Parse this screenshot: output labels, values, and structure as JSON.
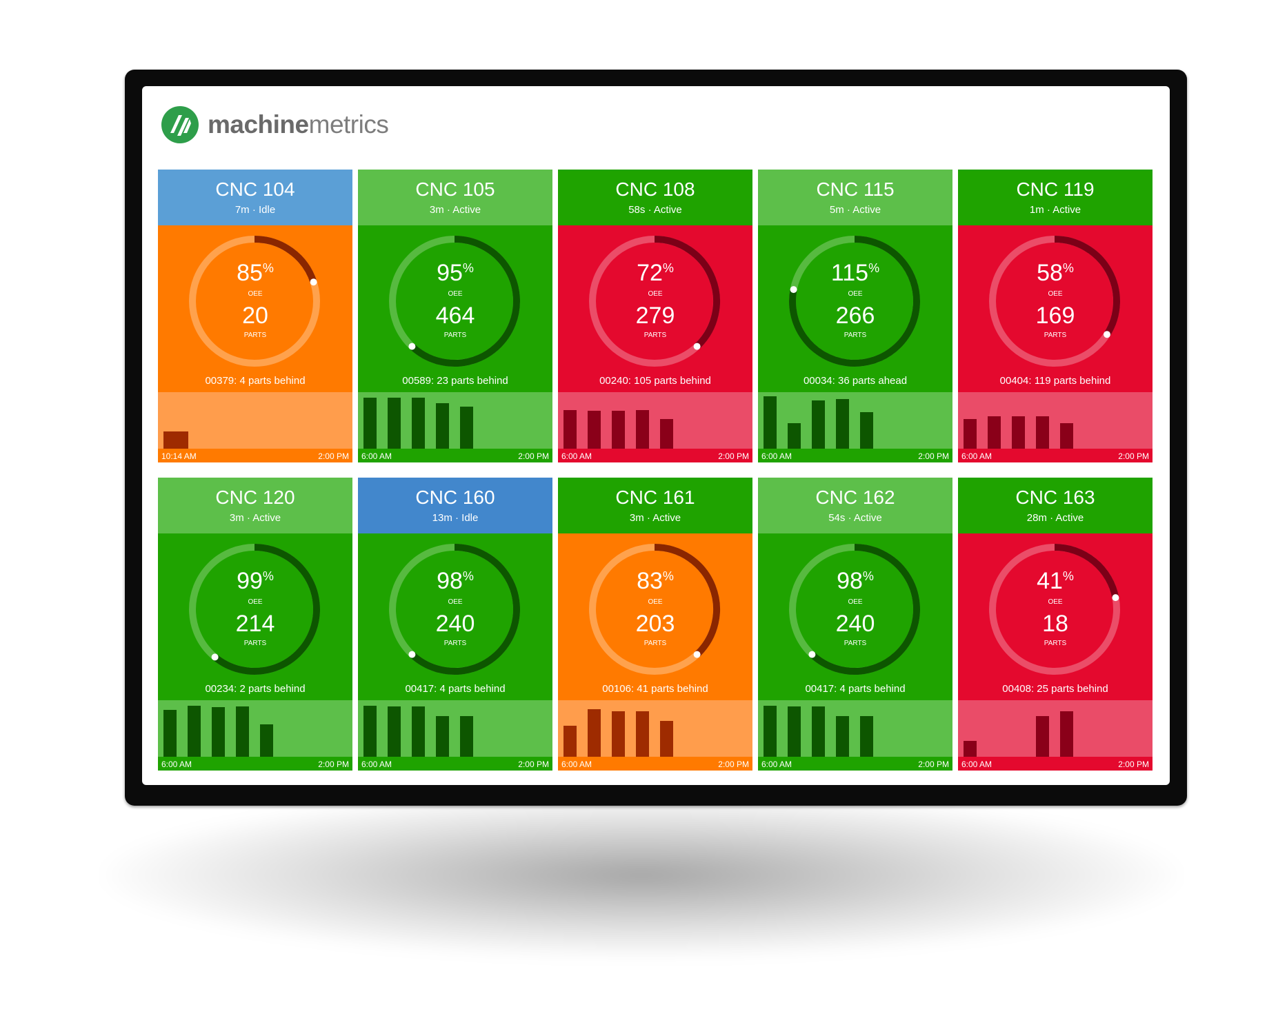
{
  "brand": {
    "name_strong": "machine",
    "name_light": "metrics"
  },
  "palette": {
    "orange": {
      "header": "#ff7a00",
      "body": "#ff7a00",
      "track": "rgba(255,255,255,0.30)",
      "arc": "#8a2600",
      "chart": "#ff9d4c",
      "bar": "#9e2b00",
      "base": "#ff7a00"
    },
    "green": {
      "header": "#1fa300",
      "body": "#1fa300",
      "track": "rgba(255,255,255,0.25)",
      "arc": "#0d5600",
      "chart": "#5dbf4a",
      "bar": "#0d5600",
      "base": "#1fa300"
    },
    "lightgreen": {
      "header": "#5dbf4a",
      "body": "#1fa300",
      "track": "rgba(255,255,255,0.25)",
      "arc": "#0d5600",
      "chart": "#5dbf4a",
      "bar": "#0d5600",
      "base": "#1fa300"
    },
    "red": {
      "header": "#e4092e",
      "body": "#e4092e",
      "track": "rgba(255,255,255,0.28)",
      "arc": "#7c0017",
      "chart": "#ea4c68",
      "bar": "#8a0019",
      "base": "#e4092e"
    },
    "blue": {
      "header": "#5b9fd6",
      "body": "#ff7a00"
    },
    "blue2": {
      "header": "#4287cc",
      "body": "#1fa300"
    }
  },
  "machines": [
    {
      "name": "CNC 104",
      "status": "7m · Idle",
      "header": "blue",
      "body": "orange",
      "oee": "85",
      "oee_sym": "%",
      "parts": "20",
      "oee_label": "OEE",
      "parts_label": "PARTS",
      "note": "00379: 4 parts behind",
      "start": "10:14 AM",
      "end": "2:00 PM",
      "oee_value": 0.2,
      "bars": [
        0.32
      ],
      "bar_start": 0
    },
    {
      "name": "CNC 105",
      "status": "3m · Active",
      "header": "lightgreen",
      "body": "green",
      "oee": "95",
      "oee_sym": "%",
      "parts": "464",
      "oee_label": "OEE",
      "parts_label": "PARTS",
      "note": "00589: 23 parts behind",
      "start": "6:00 AM",
      "end": "2:00 PM",
      "oee_value": 0.62,
      "bars": [
        0.95,
        0.95,
        0.95,
        0.85,
        0.78
      ],
      "bar_start": 0
    },
    {
      "name": "CNC 108",
      "status": "58s · Active",
      "header": "green",
      "body": "red",
      "oee": "72",
      "oee_sym": "%",
      "parts": "279",
      "oee_label": "OEE",
      "parts_label": "PARTS",
      "note": "00240: 105 parts behind",
      "start": "6:00 AM",
      "end": "2:00 PM",
      "oee_value": 0.38,
      "bars": [
        0.72,
        0.7,
        0.7,
        0.72,
        0.55
      ],
      "bar_start": 0
    },
    {
      "name": "CNC 115",
      "status": "5m · Active",
      "header": "lightgreen",
      "body": "green",
      "oee": "115",
      "oee_sym": "%",
      "parts": "266",
      "oee_label": "OEE",
      "parts_label": "PARTS",
      "note": "00034: 36 parts ahead",
      "start": "6:00 AM",
      "end": "2:00 PM",
      "oee_value": 0.78,
      "bars": [
        0.97,
        0.48,
        0.9,
        0.92,
        0.68
      ],
      "bar_start": 0
    },
    {
      "name": "CNC 119",
      "status": "1m · Active",
      "header": "green",
      "body": "red",
      "oee": "58",
      "oee_sym": "%",
      "parts": "169",
      "oee_label": "OEE",
      "parts_label": "PARTS",
      "note": "00404: 119 parts behind",
      "start": "6:00 AM",
      "end": "2:00 PM",
      "oee_value": 0.34,
      "bars": [
        0.55,
        0.6,
        0.6,
        0.6,
        0.48
      ],
      "bar_start": 0
    },
    {
      "name": "CNC 120",
      "status": "3m · Active",
      "header": "lightgreen",
      "body": "green",
      "oee": "99",
      "oee_sym": "%",
      "parts": "214",
      "oee_label": "OEE",
      "parts_label": "PARTS",
      "note": "00234: 2 parts behind",
      "start": "6:00 AM",
      "end": "2:00 PM",
      "oee_value": 0.61,
      "bars": [
        0.87,
        0.95,
        0.92,
        0.94,
        0.6
      ],
      "bar_start": 0
    },
    {
      "name": "CNC 160",
      "status": "13m · Idle",
      "header": "blue2",
      "body": "green",
      "oee": "98",
      "oee_sym": "%",
      "parts": "240",
      "oee_label": "OEE",
      "parts_label": "PARTS",
      "note": "00417: 4 parts behind",
      "start": "6:00 AM",
      "end": "2:00 PM",
      "oee_value": 0.62,
      "bars": [
        0.95,
        0.94,
        0.94,
        0.76,
        0.76
      ],
      "bar_start": 0
    },
    {
      "name": "CNC 161",
      "status": "3m · Active",
      "header": "green",
      "body": "orange",
      "oee": "83",
      "oee_sym": "%",
      "parts": "203",
      "oee_label": "OEE",
      "parts_label": "PARTS",
      "note": "00106: 41 parts behind",
      "start": "6:00 AM",
      "end": "2:00 PM",
      "oee_value": 0.38,
      "bars": [
        0.58,
        0.88,
        0.85,
        0.85,
        0.67
      ],
      "bar_start": 0
    },
    {
      "name": "CNC 162",
      "status": "54s · Active",
      "header": "lightgreen",
      "body": "green",
      "oee": "98",
      "oee_sym": "%",
      "parts": "240",
      "oee_label": "OEE",
      "parts_label": "PARTS",
      "note": "00417: 4 parts behind",
      "start": "6:00 AM",
      "end": "2:00 PM",
      "oee_value": 0.62,
      "bars": [
        0.95,
        0.94,
        0.94,
        0.76,
        0.76
      ],
      "bar_start": 0
    },
    {
      "name": "CNC 163",
      "status": "28m · Active",
      "header": "green",
      "body": "red",
      "oee": "41",
      "oee_sym": "%",
      "parts": "18",
      "oee_label": "OEE",
      "parts_label": "PARTS",
      "note": "00408: 25 parts behind",
      "start": "6:00 AM",
      "end": "2:00 PM",
      "oee_value": 0.22,
      "bars": [
        0.3,
        0,
        0,
        0.75,
        0.85
      ],
      "bar_start": 0
    }
  ]
}
